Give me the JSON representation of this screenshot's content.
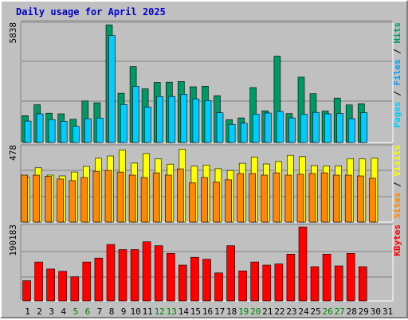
{
  "chart_data": [
    {
      "type": "bar",
      "title": "Daily usage for April 2025",
      "panel": "hits-files-pages",
      "ymax_label": "5838",
      "ylim": [
        0,
        5838
      ],
      "right_label": {
        "parts": [
          "Pages",
          "Files",
          "Hits"
        ],
        "separator": " / ",
        "colors": [
          "#00ccff",
          "#0099ff",
          "#009966"
        ]
      },
      "categories": [
        "1",
        "2",
        "3",
        "4",
        "5",
        "6",
        "7",
        "8",
        "9",
        "10",
        "11",
        "12",
        "13",
        "14",
        "15",
        "16",
        "17",
        "18",
        "19",
        "20",
        "21",
        "22",
        "23",
        "24",
        "25",
        "26",
        "27",
        "28",
        "29",
        "30",
        "31"
      ],
      "series": [
        {
          "name": "Hits",
          "color": "#009966",
          "values": [
            1330,
            1870,
            1450,
            1420,
            1150,
            2060,
            1970,
            5830,
            2440,
            3760,
            2660,
            2980,
            2990,
            3020,
            2760,
            2790,
            2320,
            1130,
            1220,
            2720,
            1570,
            4280,
            1430,
            3240,
            2420,
            1560,
            2200,
            1860,
            1920,
            0,
            0
          ]
        },
        {
          "name": "Files",
          "color": "#00ccff",
          "values": [
            1060,
            1420,
            1140,
            1050,
            800,
            1180,
            1210,
            5300,
            1880,
            2780,
            1750,
            2280,
            2280,
            2390,
            2160,
            2080,
            1470,
            900,
            960,
            1410,
            1460,
            1540,
            1220,
            1400,
            1490,
            1420,
            1440,
            1180,
            1480,
            0,
            0
          ]
        },
        {
          "name": "Pages",
          "color": "#00ccff",
          "values": [
            1010,
            1320,
            1080,
            960,
            780,
            1000,
            1150,
            4800,
            1760,
            2620,
            1650,
            2150,
            2170,
            2270,
            2050,
            1970,
            1380,
            840,
            900,
            1330,
            1370,
            1430,
            1140,
            1320,
            1400,
            1350,
            1370,
            1110,
            1410,
            0,
            0
          ]
        }
      ]
    },
    {
      "type": "bar",
      "panel": "visits-sites",
      "ymax_label": "478",
      "ylim": [
        0,
        478
      ],
      "right_label": {
        "parts": [
          "Sites",
          "Visits"
        ],
        "separator": " / ",
        "colors": [
          "#ff8800",
          "#ffff00"
        ]
      },
      "series": [
        {
          "name": "Visits",
          "color": "#ffff00",
          "values": [
            286,
            347,
            300,
            295,
            320,
            356,
            408,
            422,
            460,
            377,
            438,
            403,
            370,
            466,
            357,
            364,
            341,
            330,
            376,
            416,
            371,
            387,
            426,
            418,
            361,
            358,
            359,
            405,
            403,
            408,
            0
          ]
        },
        {
          "name": "Sites",
          "color": "#ff8800",
          "values": [
            300,
            300,
            292,
            275,
            265,
            285,
            325,
            330,
            320,
            300,
            285,
            315,
            300,
            340,
            250,
            285,
            255,
            270,
            310,
            310,
            300,
            315,
            300,
            305,
            310,
            315,
            300,
            300,
            295,
            280,
            0
          ]
        }
      ]
    },
    {
      "type": "bar",
      "panel": "kbytes",
      "ymax_label": "190183",
      "ylim": [
        0,
        190183
      ],
      "right_label": {
        "parts": [
          "KBytes"
        ],
        "separator": "",
        "colors": [
          "#ff0000"
        ]
      },
      "series": [
        {
          "name": "KBytes",
          "color": "#ff0000",
          "values": [
            52000,
            100000,
            82000,
            76000,
            62000,
            100000,
            110000,
            145000,
            132000,
            132000,
            152000,
            142000,
            122000,
            92000,
            112000,
            107000,
            72000,
            142000,
            77000,
            100000,
            92000,
            95000,
            120000,
            190000,
            88000,
            120000,
            90000,
            122000,
            88000,
            0,
            0
          ]
        }
      ]
    }
  ],
  "x_labels": [
    {
      "text": "1",
      "color": "#000000"
    },
    {
      "text": "2",
      "color": "#000000"
    },
    {
      "text": "3",
      "color": "#000000"
    },
    {
      "text": "4",
      "color": "#000000"
    },
    {
      "text": "5",
      "color": "#008000"
    },
    {
      "text": "6",
      "color": "#008000"
    },
    {
      "text": "7",
      "color": "#000000"
    },
    {
      "text": "8",
      "color": "#000000"
    },
    {
      "text": "9",
      "color": "#000000"
    },
    {
      "text": "10",
      "color": "#000000"
    },
    {
      "text": "11",
      "color": "#000000"
    },
    {
      "text": "12",
      "color": "#008000"
    },
    {
      "text": "13",
      "color": "#008000"
    },
    {
      "text": "14",
      "color": "#000000"
    },
    {
      "text": "15",
      "color": "#000000"
    },
    {
      "text": "16",
      "color": "#000000"
    },
    {
      "text": "17",
      "color": "#000000"
    },
    {
      "text": "18",
      "color": "#000000"
    },
    {
      "text": "19",
      "color": "#008000"
    },
    {
      "text": "20",
      "color": "#008000"
    },
    {
      "text": "21",
      "color": "#000000"
    },
    {
      "text": "22",
      "color": "#000000"
    },
    {
      "text": "23",
      "color": "#000000"
    },
    {
      "text": "24",
      "color": "#000000"
    },
    {
      "text": "25",
      "color": "#000000"
    },
    {
      "text": "26",
      "color": "#008000"
    },
    {
      "text": "27",
      "color": "#008000"
    },
    {
      "text": "28",
      "color": "#000000"
    },
    {
      "text": "29",
      "color": "#000000"
    },
    {
      "text": "30",
      "color": "#000000"
    },
    {
      "text": "31",
      "color": "#000000"
    }
  ],
  "colors": {
    "panel_background": "#c0c0c0",
    "gridline": "#808080",
    "title": "#0000cc"
  }
}
